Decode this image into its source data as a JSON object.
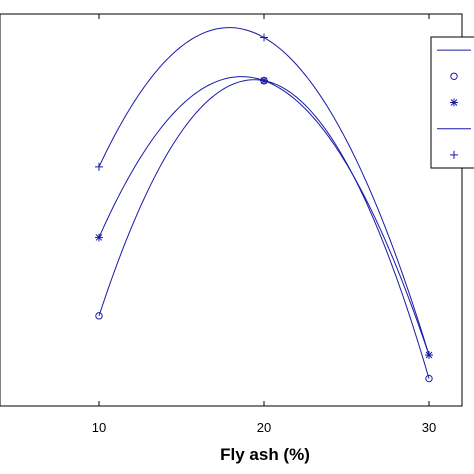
{
  "chart_data": {
    "type": "line",
    "xlabel": "Fly ash (%)",
    "ylabel": "",
    "title": "",
    "xlim": [
      4,
      32
    ],
    "ylim": [
      0,
      100
    ],
    "x_ticks": [
      10,
      20,
      30
    ],
    "x_tick_labels": [
      "10",
      "20",
      "30"
    ],
    "grid": false,
    "legend_position": "top-right",
    "series": [
      {
        "marker": "circle",
        "points": [
          [
            10,
            23
          ],
          [
            20,
            83
          ],
          [
            30,
            7
          ]
        ]
      },
      {
        "marker": "star",
        "points": [
          [
            10,
            43
          ],
          [
            20,
            83
          ],
          [
            30,
            13
          ]
        ]
      },
      {
        "marker": "plus",
        "points": [
          [
            10,
            61
          ],
          [
            20,
            94
          ],
          [
            30,
            13
          ]
        ]
      }
    ],
    "legend_entries": [
      {
        "style": "line",
        "marker": "none"
      },
      {
        "style": "marker",
        "marker": "circle"
      },
      {
        "style": "marker",
        "marker": "star"
      },
      {
        "style": "line",
        "marker": "none"
      },
      {
        "style": "marker",
        "marker": "plus"
      }
    ],
    "line_color": "#1a1aa6"
  }
}
